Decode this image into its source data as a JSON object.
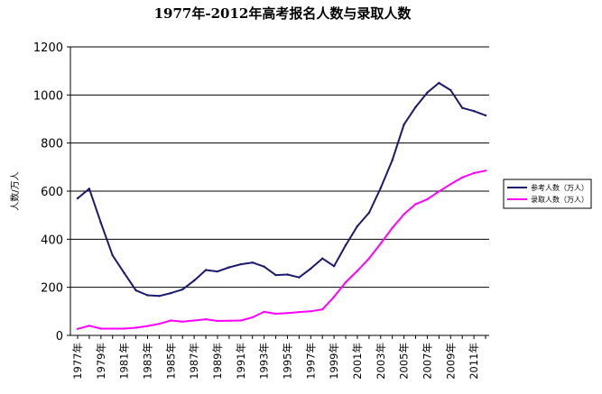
{
  "chart_data": {
    "type": "line",
    "title": "1977年-2012年高考报名人数与录取人数",
    "xlabel": "",
    "ylabel": "人数/万人",
    "ylim": [
      0,
      1200
    ],
    "yticks": [
      0,
      200,
      400,
      600,
      800,
      1000,
      1200
    ],
    "grid": true,
    "legend_position": "right",
    "x": [
      "1977年",
      "1978年",
      "1979年",
      "1980年",
      "1981年",
      "1982年",
      "1983年",
      "1984年",
      "1985年",
      "1986年",
      "1987年",
      "1988年",
      "1989年",
      "1990年",
      "1991年",
      "1992年",
      "1993年",
      "1994年",
      "1995年",
      "1996年",
      "1997年",
      "1998年",
      "1999年",
      "2000年",
      "2001年",
      "2002年",
      "2003年",
      "2004年",
      "2005年",
      "2006年",
      "2007年",
      "2008年",
      "2009年",
      "2010年",
      "2011年",
      "2012年"
    ],
    "x_tick_labels": [
      "1977年",
      "1979年",
      "1981年",
      "1983年",
      "1985年",
      "1987年",
      "1989年",
      "1991年",
      "1993年",
      "1995年",
      "1997年",
      "1999年",
      "2001年",
      "2003年",
      "2005年",
      "2007年",
      "2009年",
      "2011年"
    ],
    "series": [
      {
        "name": "参考人数（万人）",
        "color": "#1a1a6e",
        "values": [
          570,
          610,
          468,
          333,
          259,
          187,
          167,
          164,
          176,
          191,
          228,
          272,
          266,
          283,
          296,
          303,
          286,
          251,
          253,
          241,
          278,
          320,
          288,
          375,
          454,
          510,
          613,
          729,
          877,
          950,
          1010,
          1050,
          1020,
          946,
          933,
          915
        ]
      },
      {
        "name": "录取人数（万人）",
        "color": "#ff00ff",
        "values": [
          27,
          40,
          28,
          28,
          28,
          32,
          39,
          48,
          62,
          57,
          62,
          67,
          60,
          61,
          62,
          75,
          98,
          90,
          93,
          97,
          100,
          108,
          160,
          221,
          268,
          320,
          382,
          447,
          504,
          546,
          566,
          599,
          629,
          657,
          675,
          685
        ]
      }
    ]
  }
}
